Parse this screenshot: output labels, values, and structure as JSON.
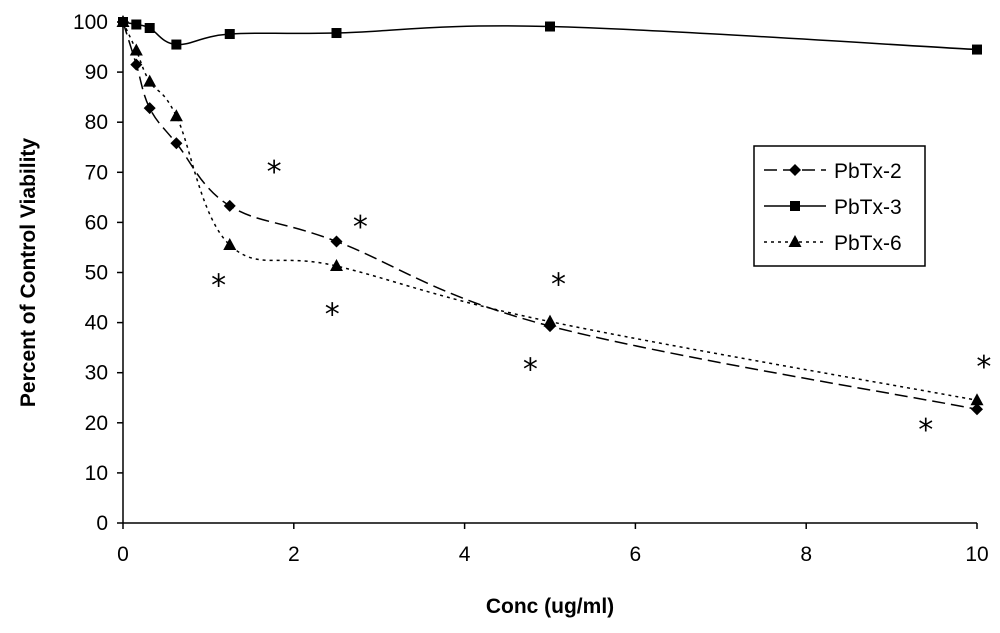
{
  "chart_data": {
    "type": "line",
    "title": "",
    "xlabel": "Conc (ug/ml)",
    "ylabel": "Percent of Control Viability",
    "xlim": [
      0,
      10
    ],
    "ylim": [
      0,
      100
    ],
    "xticks": [
      0,
      2,
      4,
      6,
      8,
      10
    ],
    "yticks": [
      0,
      10,
      20,
      30,
      40,
      50,
      60,
      70,
      80,
      90,
      100
    ],
    "grid": false,
    "legend_position": "right",
    "series": [
      {
        "name": "PbTx-2",
        "marker": "diamond",
        "line_style": "dashed",
        "x": [
          0,
          0.156,
          0.3125,
          0.625,
          1.25,
          2.5,
          5,
          10
        ],
        "y": [
          100,
          91.5,
          82.8,
          75.8,
          63.3,
          56.2,
          39.3,
          22.7
        ]
      },
      {
        "name": "PbTx-3",
        "marker": "square",
        "line_style": "solid",
        "x": [
          0,
          0.156,
          0.3125,
          0.625,
          1.25,
          2.5,
          5,
          10
        ],
        "y": [
          100,
          99.5,
          98.8,
          95.5,
          97.6,
          97.8,
          99.1,
          94.5
        ]
      },
      {
        "name": "PbTx-6",
        "marker": "triangle",
        "line_style": "dotted",
        "x": [
          0,
          0.156,
          0.3125,
          0.625,
          1.25,
          2.5,
          5,
          10
        ],
        "y": [
          100,
          94.3,
          88.1,
          81.2,
          55.5,
          51.3,
          40.2,
          24.5
        ]
      }
    ],
    "annotations": [
      {
        "text": "*",
        "x": 1.77,
        "y": 70.5
      },
      {
        "text": "*",
        "x": 1.12,
        "y": 47.8
      },
      {
        "text": "*",
        "x": 2.78,
        "y": 59.5
      },
      {
        "text": "*",
        "x": 2.45,
        "y": 42.0
      },
      {
        "text": "*",
        "x": 5.1,
        "y": 48.0
      },
      {
        "text": "*",
        "x": 4.77,
        "y": 31.0
      },
      {
        "text": "*",
        "x": 9.4,
        "y": 19.0
      },
      {
        "text": "*",
        "x": 10.08,
        "y": 31.5
      }
    ]
  }
}
